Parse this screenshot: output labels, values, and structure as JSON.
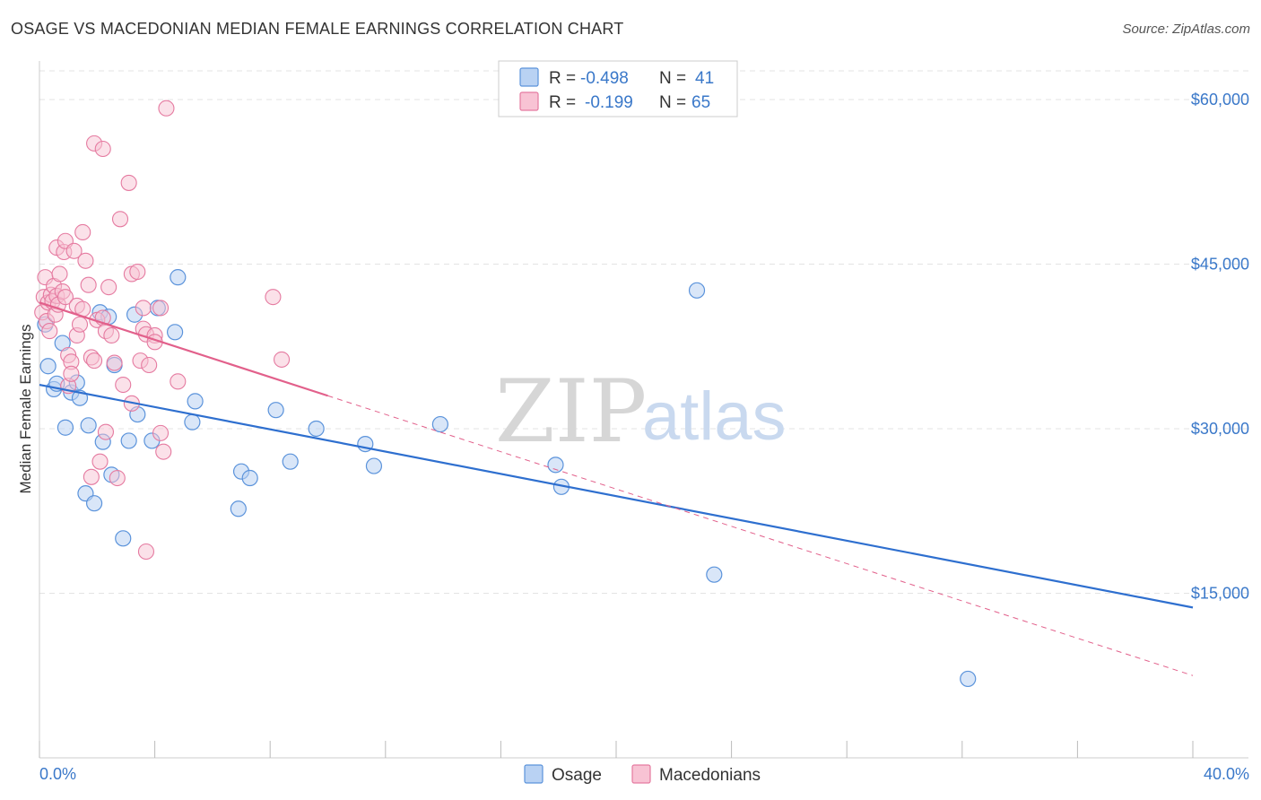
{
  "title": "OSAGE VS MACEDONIAN MEDIAN FEMALE EARNINGS CORRELATION CHART",
  "source": "Source: ZipAtlas.com",
  "watermark": {
    "zip": "ZIP",
    "atlas": "atlas"
  },
  "colors": {
    "osage": "#5b93db",
    "osage_fill": "#b9d2f3",
    "osage_line": "#2e6fcf",
    "macedonian": "#e57aa0",
    "macedonian_fill": "#f8c3d4",
    "macedonian_line": "#e2608b",
    "axis_text": "#3a78c9",
    "grid": "#e3e3e3"
  },
  "legend": {
    "rows": [
      {
        "r_label": "R =",
        "r_value": "-0.498",
        "n_label": "N =",
        "n_value": "41"
      },
      {
        "r_label": "R =",
        "r_value": "-0.199",
        "n_label": "N =",
        "n_value": "65"
      }
    ]
  },
  "chart_data": {
    "type": "scatter",
    "title": "OSAGE VS MACEDONIAN MEDIAN FEMALE EARNINGS CORRELATION CHART",
    "xlabel": "",
    "ylabel": "Median Female Earnings",
    "xlim": [
      0,
      40
    ],
    "ylim": [
      0,
      64000
    ],
    "x_tick_labels": [
      "0.0%",
      "40.0%"
    ],
    "y_ticks": [
      15000,
      30000,
      45000,
      60000
    ],
    "y_tick_labels": [
      "$15,000",
      "$30,000",
      "$45,000",
      "$60,000"
    ],
    "grid": true,
    "series": [
      {
        "name": "Osage",
        "r": -0.498,
        "n": 41,
        "trend": {
          "x0": 0,
          "y0": 34000,
          "x1": 40,
          "y1": 13700
        },
        "points": [
          [
            0.2,
            39500
          ],
          [
            0.3,
            35700
          ],
          [
            0.5,
            33600
          ],
          [
            0.6,
            34100
          ],
          [
            0.8,
            37800
          ],
          [
            0.9,
            30100
          ],
          [
            1.1,
            33300
          ],
          [
            1.3,
            34200
          ],
          [
            1.4,
            32800
          ],
          [
            1.6,
            24100
          ],
          [
            1.7,
            30300
          ],
          [
            1.9,
            23200
          ],
          [
            2.1,
            40600
          ],
          [
            2.2,
            28800
          ],
          [
            2.4,
            40200
          ],
          [
            2.5,
            25800
          ],
          [
            2.6,
            35800
          ],
          [
            2.9,
            20000
          ],
          [
            3.1,
            28900
          ],
          [
            3.3,
            40400
          ],
          [
            3.4,
            31300
          ],
          [
            3.9,
            28900
          ],
          [
            4.1,
            41000
          ],
          [
            4.7,
            38800
          ],
          [
            4.8,
            43800
          ],
          [
            5.3,
            30600
          ],
          [
            5.4,
            32500
          ],
          [
            6.9,
            22700
          ],
          [
            7.0,
            26100
          ],
          [
            7.3,
            25500
          ],
          [
            8.2,
            31700
          ],
          [
            8.7,
            27000
          ],
          [
            9.6,
            30000
          ],
          [
            11.3,
            28600
          ],
          [
            11.6,
            26600
          ],
          [
            13.9,
            30400
          ],
          [
            17.9,
            26700
          ],
          [
            18.1,
            24700
          ],
          [
            22.8,
            42600
          ],
          [
            23.4,
            16700
          ],
          [
            32.2,
            7200
          ]
        ]
      },
      {
        "name": "Macedonians",
        "r": -0.199,
        "n": 65,
        "trend": {
          "x0": 0,
          "y0": 41500,
          "x1": 10,
          "y1": 33000
        },
        "trend_ext": {
          "x0": 10,
          "y0": 33000,
          "x1": 40,
          "y1": 7500
        },
        "points": [
          [
            0.1,
            40600
          ],
          [
            0.15,
            42000
          ],
          [
            0.2,
            43800
          ],
          [
            0.25,
            39800
          ],
          [
            0.3,
            41500
          ],
          [
            0.35,
            38900
          ],
          [
            0.4,
            42200
          ],
          [
            0.45,
            41600
          ],
          [
            0.5,
            43000
          ],
          [
            0.55,
            40400
          ],
          [
            0.6,
            46500
          ],
          [
            0.6,
            42100
          ],
          [
            0.65,
            41300
          ],
          [
            0.7,
            44100
          ],
          [
            0.8,
            42500
          ],
          [
            0.85,
            46100
          ],
          [
            0.9,
            47100
          ],
          [
            0.9,
            42000
          ],
          [
            1.0,
            36700
          ],
          [
            1.0,
            33900
          ],
          [
            1.1,
            36100
          ],
          [
            1.1,
            35000
          ],
          [
            1.2,
            46200
          ],
          [
            1.3,
            38500
          ],
          [
            1.3,
            41200
          ],
          [
            1.4,
            39500
          ],
          [
            1.5,
            47900
          ],
          [
            1.5,
            40900
          ],
          [
            1.6,
            45300
          ],
          [
            1.7,
            43100
          ],
          [
            1.8,
            36500
          ],
          [
            1.8,
            25600
          ],
          [
            1.9,
            56000
          ],
          [
            1.9,
            36200
          ],
          [
            2.0,
            39900
          ],
          [
            2.1,
            27000
          ],
          [
            2.2,
            55500
          ],
          [
            2.2,
            40100
          ],
          [
            2.3,
            38900
          ],
          [
            2.3,
            29700
          ],
          [
            2.4,
            42900
          ],
          [
            2.5,
            38500
          ],
          [
            2.6,
            36000
          ],
          [
            2.7,
            25500
          ],
          [
            2.8,
            49100
          ],
          [
            2.9,
            34000
          ],
          [
            3.1,
            52400
          ],
          [
            3.2,
            44100
          ],
          [
            3.2,
            32300
          ],
          [
            3.4,
            44300
          ],
          [
            3.5,
            36200
          ],
          [
            3.6,
            41000
          ],
          [
            3.6,
            39100
          ],
          [
            3.7,
            38600
          ],
          [
            3.7,
            18800
          ],
          [
            3.8,
            35800
          ],
          [
            4.0,
            38500
          ],
          [
            4.0,
            37900
          ],
          [
            4.2,
            41000
          ],
          [
            4.2,
            29600
          ],
          [
            4.3,
            27900
          ],
          [
            4.4,
            59200
          ],
          [
            4.8,
            34300
          ],
          [
            8.1,
            42000
          ],
          [
            8.4,
            36300
          ]
        ]
      }
    ]
  },
  "bottom_legend": {
    "items": [
      "Osage",
      "Macedonians"
    ]
  }
}
